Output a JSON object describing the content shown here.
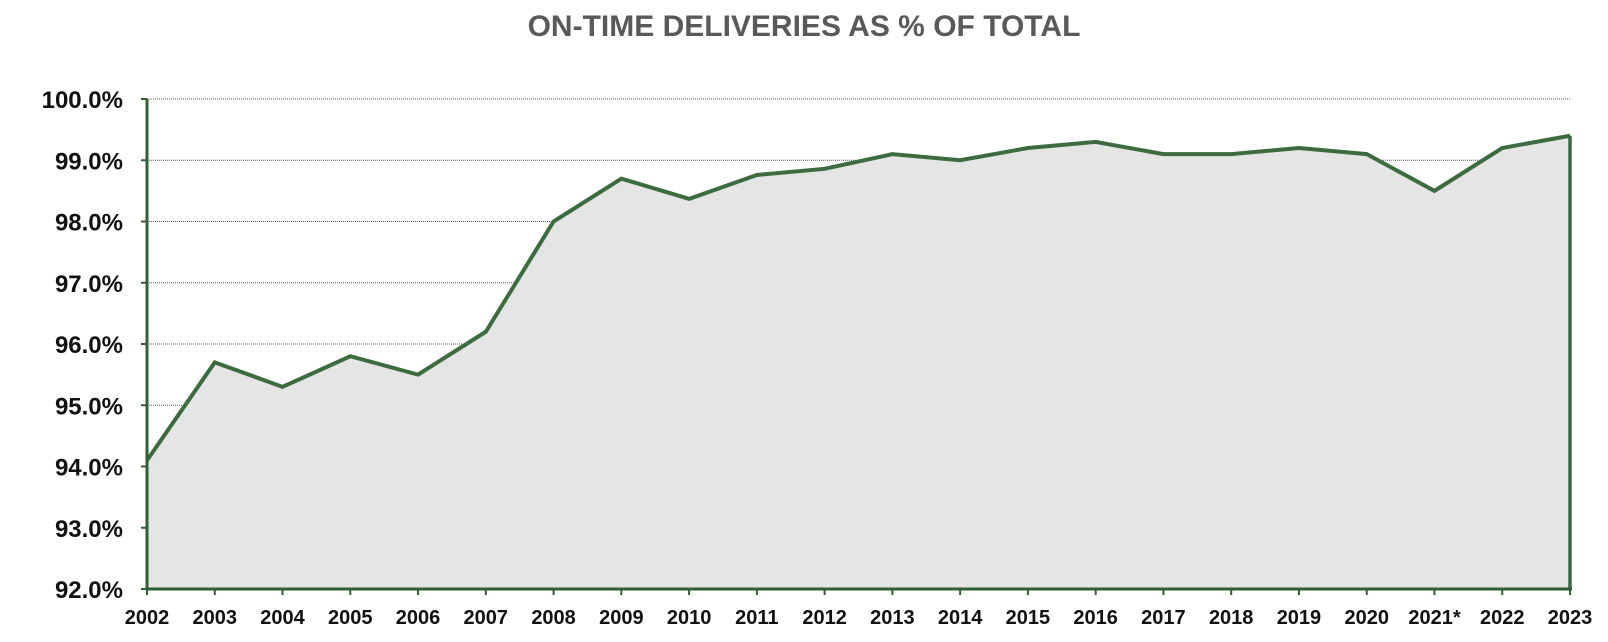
{
  "chart_data": {
    "type": "area",
    "title": "ON-TIME DELIVERIES AS % OF TOTAL",
    "xlabel": "",
    "ylabel": "",
    "categories": [
      "2002",
      "2003",
      "2004",
      "2005",
      "2006",
      "2007",
      "2008",
      "2009",
      "2010",
      "2011",
      "2012",
      "2013",
      "2014",
      "2015",
      "2016",
      "2017",
      "2018",
      "2019",
      "2020",
      "2021*",
      "2022",
      "2023"
    ],
    "series": [
      {
        "name": "On-time deliveries",
        "values": [
          94.1,
          95.7,
          95.3,
          95.8,
          95.5,
          96.2,
          98.0,
          98.7,
          98.37,
          98.76,
          98.86,
          99.1,
          99.0,
          99.2,
          99.3,
          99.1,
          99.1,
          99.2,
          99.1,
          98.5,
          99.2,
          99.4
        ]
      }
    ],
    "ylim": [
      92.0,
      100.0
    ],
    "yticks": [
      92.0,
      93.0,
      94.0,
      95.0,
      96.0,
      97.0,
      98.0,
      99.0,
      100.0
    ],
    "ytick_labels": [
      "92.0%",
      "93.0%",
      "94.0%",
      "95.0%",
      "96.0%",
      "97.0%",
      "98.0%",
      "99.0%",
      "100.0%"
    ],
    "grid": true,
    "legend": "none",
    "colors": {
      "line": "#3d6b40",
      "fill": "#e5e5e5",
      "grid": "#3d6b40",
      "axis": "#2f5f33",
      "title": "#595959"
    }
  }
}
